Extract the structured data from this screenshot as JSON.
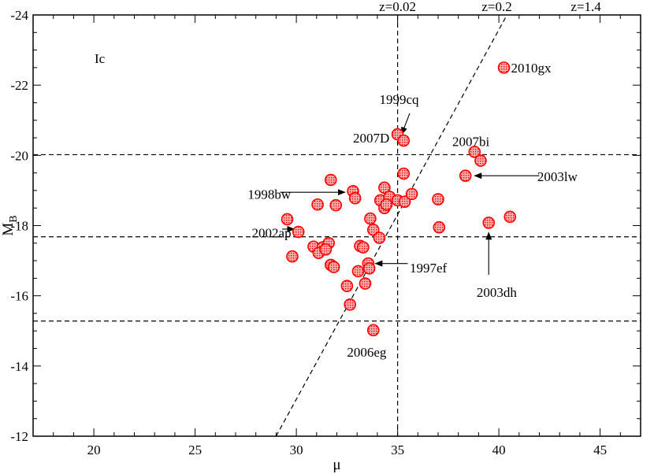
{
  "chart_data": {
    "type": "scatter",
    "xlabel": "μ",
    "ylabel": "M",
    "ylabel_sub": "B",
    "xlim": [
      17,
      47
    ],
    "ylim": [
      -12,
      -24
    ],
    "x_ticks": [
      20,
      25,
      30,
      35,
      40,
      45
    ],
    "y_ticks": [
      -24,
      -22,
      -20,
      -18,
      -16,
      -14,
      -12
    ],
    "panel_label": "Ic",
    "grid": false,
    "marker_color": "#ff0000",
    "marker_fill": "#f4b0b0",
    "hlines": [
      -20.02,
      -17.68,
      -15.28
    ],
    "vline": 35.0,
    "diagonal": [
      [
        29.0,
        -12.0
      ],
      [
        40.4,
        -24.0
      ]
    ],
    "top_labels": [
      {
        "text": "z=0.02",
        "x": 35.0
      },
      {
        "text": "z=0.2",
        "x": 39.9
      },
      {
        "text": "z=1.4",
        "x": 44.3
      }
    ],
    "points": [
      {
        "x": 40.25,
        "y": -22.5
      },
      {
        "x": 35.0,
        "y": -20.6
      },
      {
        "x": 35.3,
        "y": -20.42
      },
      {
        "x": 38.8,
        "y": -20.1
      },
      {
        "x": 39.1,
        "y": -19.85
      },
      {
        "x": 38.35,
        "y": -19.42
      },
      {
        "x": 35.3,
        "y": -19.48
      },
      {
        "x": 31.7,
        "y": -19.3
      },
      {
        "x": 32.8,
        "y": -18.98
      },
      {
        "x": 32.9,
        "y": -18.78
      },
      {
        "x": 34.35,
        "y": -19.08
      },
      {
        "x": 34.15,
        "y": -18.72
      },
      {
        "x": 34.6,
        "y": -18.82
      },
      {
        "x": 35.0,
        "y": -18.72
      },
      {
        "x": 35.35,
        "y": -18.68
      },
      {
        "x": 35.7,
        "y": -18.9
      },
      {
        "x": 34.35,
        "y": -18.5
      },
      {
        "x": 34.45,
        "y": -18.6
      },
      {
        "x": 31.05,
        "y": -18.6
      },
      {
        "x": 31.95,
        "y": -18.58
      },
      {
        "x": 37.0,
        "y": -18.75
      },
      {
        "x": 29.55,
        "y": -18.18
      },
      {
        "x": 30.1,
        "y": -17.82
      },
      {
        "x": 33.65,
        "y": -18.2
      },
      {
        "x": 33.8,
        "y": -17.88
      },
      {
        "x": 34.1,
        "y": -17.65
      },
      {
        "x": 37.05,
        "y": -17.95
      },
      {
        "x": 40.55,
        "y": -18.25
      },
      {
        "x": 39.5,
        "y": -18.08
      },
      {
        "x": 30.85,
        "y": -17.4
      },
      {
        "x": 31.3,
        "y": -17.38
      },
      {
        "x": 31.1,
        "y": -17.22
      },
      {
        "x": 31.6,
        "y": -17.5
      },
      {
        "x": 31.45,
        "y": -17.32
      },
      {
        "x": 29.8,
        "y": -17.12
      },
      {
        "x": 33.15,
        "y": -17.42
      },
      {
        "x": 33.3,
        "y": -17.38
      },
      {
        "x": 31.7,
        "y": -16.88
      },
      {
        "x": 31.85,
        "y": -16.82
      },
      {
        "x": 33.55,
        "y": -16.92
      },
      {
        "x": 33.6,
        "y": -16.78
      },
      {
        "x": 33.05,
        "y": -16.7
      },
      {
        "x": 33.4,
        "y": -16.35
      },
      {
        "x": 32.5,
        "y": -16.28
      },
      {
        "x": 32.65,
        "y": -15.75
      },
      {
        "x": 33.8,
        "y": -15.02
      }
    ],
    "annotations": [
      {
        "text": "2010gx",
        "x": 40.6,
        "y": -22.5
      },
      {
        "text": "1999cq",
        "x": 34.1,
        "y": -21.6
      },
      {
        "text": "2007D",
        "x": 32.8,
        "y": -20.5
      },
      {
        "text": "2007bi",
        "x": 37.7,
        "y": -20.4
      },
      {
        "text": "2003lw",
        "x": 41.9,
        "y": -19.4
      },
      {
        "text": "1998bw",
        "x": 27.6,
        "y": -18.9
      },
      {
        "text": "2002ap",
        "x": 27.8,
        "y": -17.8
      },
      {
        "text": "1997ef",
        "x": 35.6,
        "y": -16.8
      },
      {
        "text": "2003dh",
        "x": 38.9,
        "y": -16.1
      },
      {
        "text": "2006eg",
        "x": 32.5,
        "y": -14.4
      }
    ],
    "arrows": [
      {
        "from": [
          35.6,
          -21.2
        ],
        "to": [
          35.2,
          -20.6
        ]
      },
      {
        "from": [
          29.2,
          -18.95
        ],
        "to": [
          32.4,
          -18.95
        ]
      },
      {
        "from": [
          42.0,
          -19.42
        ],
        "to": [
          38.8,
          -19.42
        ]
      },
      {
        "from": [
          29.3,
          -17.9
        ],
        "to": [
          29.9,
          -17.9
        ]
      },
      {
        "from": [
          35.5,
          -16.92
        ],
        "to": [
          33.9,
          -16.92
        ]
      },
      {
        "from": [
          39.5,
          -16.6
        ],
        "to": [
          39.5,
          -17.8
        ]
      }
    ]
  }
}
